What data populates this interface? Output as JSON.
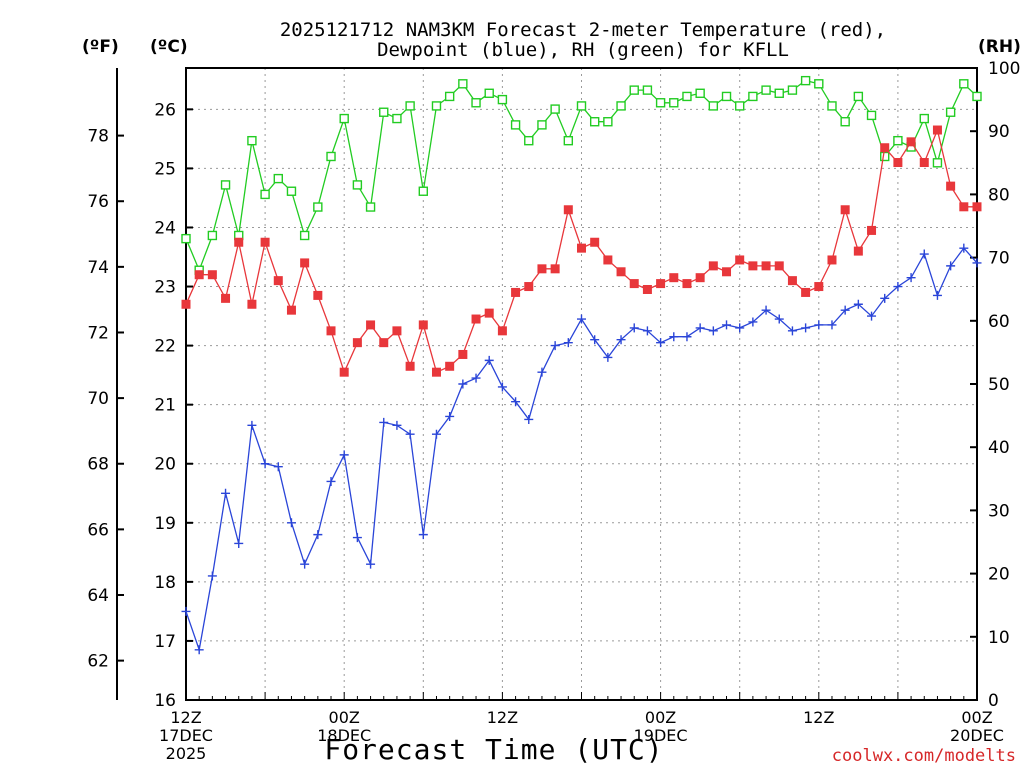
{
  "chart_data": {
    "type": "line",
    "title_lines": [
      "2025121712 NAM3KM Forecast 2-meter Temperature (red),",
      "Dewpoint (blue), RH (green) for KFLL"
    ],
    "xlabel": "Forecast Time (UTC)",
    "credit": "coolwx.com/modelts",
    "units": {
      "fahrenheit": "(ºF)",
      "celsius": "(ºC)",
      "rh": "(RH)"
    },
    "x_range": [
      0,
      60
    ],
    "x_ticks": [
      {
        "x": 0,
        "lines": [
          "12Z",
          "17DEC",
          "2025"
        ]
      },
      {
        "x": 12,
        "lines": [
          "00Z",
          "18DEC"
        ]
      },
      {
        "x": 24,
        "lines": [
          "12Z"
        ]
      },
      {
        "x": 36,
        "lines": [
          "00Z",
          "19DEC"
        ]
      },
      {
        "x": 48,
        "lines": [
          "12Z"
        ]
      },
      {
        "x": 60,
        "lines": [
          "00Z",
          "20DEC"
        ]
      }
    ],
    "celsius_axis": {
      "range": [
        16,
        26.7
      ],
      "ticks": [
        "16",
        "17",
        "18",
        "19",
        "20",
        "21",
        "22",
        "23",
        "24",
        "25",
        "26"
      ]
    },
    "fahrenheit_axis": {
      "range": [
        60.8,
        80.06
      ],
      "ticks": [
        "62",
        "64",
        "66",
        "68",
        "70",
        "72",
        "74",
        "76",
        "78"
      ]
    },
    "rh_axis": {
      "range": [
        0,
        100
      ],
      "ticks": [
        "0",
        "10",
        "20",
        "30",
        "40",
        "50",
        "60",
        "70",
        "80",
        "90",
        "100"
      ]
    },
    "colors": {
      "temperature": "#e8373b",
      "dewpoint": "#2a45d8",
      "rh": "#22cc22",
      "frame": "#000000",
      "credit": "#d62728"
    },
    "series": [
      {
        "name": "Temperature",
        "units": "C",
        "marker": "filled-square",
        "x": [
          0,
          1,
          2,
          3,
          4,
          5,
          6,
          7,
          8,
          9,
          10,
          11,
          12,
          13,
          14,
          15,
          16,
          17,
          18,
          19,
          20,
          21,
          22,
          23,
          24,
          25,
          26,
          27,
          28,
          29,
          30,
          31,
          32,
          33,
          34,
          35,
          36,
          37,
          38,
          39,
          40,
          41,
          42,
          43,
          44,
          45,
          46,
          47,
          48,
          49,
          50,
          51,
          52,
          53,
          54,
          55,
          56,
          57,
          58,
          59,
          60
        ],
        "values": [
          22.7,
          23.2,
          23.2,
          22.8,
          23.75,
          22.7,
          23.75,
          23.1,
          22.6,
          23.4,
          22.85,
          22.25,
          21.55,
          22.05,
          22.35,
          22.05,
          22.25,
          21.65,
          22.35,
          21.55,
          21.65,
          21.85,
          22.45,
          22.55,
          22.25,
          22.9,
          23.0,
          23.3,
          23.3,
          24.3,
          23.65,
          23.75,
          23.45,
          23.25,
          23.05,
          22.95,
          23.05,
          23.15,
          23.05,
          23.15,
          23.35,
          23.25,
          23.45,
          23.35,
          23.35,
          23.35,
          23.1,
          22.9,
          23.0,
          23.45,
          24.3,
          23.6,
          23.95,
          25.35,
          25.1,
          25.45,
          25.1,
          25.65,
          24.7,
          24.35,
          24.35
        ]
      },
      {
        "name": "Dewpoint",
        "units": "C",
        "marker": "plus",
        "x": [
          0,
          1,
          2,
          3,
          4,
          5,
          6,
          7,
          8,
          9,
          10,
          11,
          12,
          13,
          14,
          15,
          16,
          17,
          18,
          19,
          20,
          21,
          22,
          23,
          24,
          25,
          26,
          27,
          28,
          29,
          30,
          31,
          32,
          33,
          34,
          35,
          36,
          37,
          38,
          39,
          40,
          41,
          42,
          43,
          44,
          45,
          46,
          47,
          48,
          49,
          50,
          51,
          52,
          53,
          54,
          55,
          56,
          57,
          58,
          59,
          60
        ],
        "values": [
          17.5,
          16.85,
          18.1,
          19.5,
          18.65,
          20.65,
          20.0,
          19.95,
          19.0,
          18.3,
          18.8,
          19.7,
          20.15,
          18.75,
          18.3,
          20.7,
          20.65,
          20.5,
          18.8,
          20.5,
          20.8,
          21.35,
          21.45,
          21.75,
          21.3,
          21.05,
          20.75,
          21.55,
          22.0,
          22.05,
          22.45,
          22.1,
          21.8,
          22.1,
          22.3,
          22.25,
          22.05,
          22.15,
          22.15,
          22.3,
          22.25,
          22.35,
          22.3,
          22.4,
          22.6,
          22.45,
          22.25,
          22.3,
          22.35,
          22.35,
          22.6,
          22.7,
          22.5,
          22.8,
          23.0,
          23.15,
          23.55,
          22.85,
          23.35,
          23.65,
          23.4
        ]
      },
      {
        "name": "RH",
        "units": "%",
        "marker": "open-square",
        "x": [
          0,
          1,
          2,
          3,
          4,
          5,
          6,
          7,
          8,
          9,
          10,
          11,
          12,
          13,
          14,
          15,
          16,
          17,
          18,
          19,
          20,
          21,
          22,
          23,
          24,
          25,
          26,
          27,
          28,
          29,
          30,
          31,
          32,
          33,
          34,
          35,
          36,
          37,
          38,
          39,
          40,
          41,
          42,
          43,
          44,
          45,
          46,
          47,
          48,
          49,
          50,
          51,
          52,
          53,
          54,
          55,
          56,
          57,
          58,
          59,
          60
        ],
        "values": [
          73.0,
          68.0,
          73.5,
          81.5,
          73.5,
          88.5,
          80.0,
          82.5,
          80.5,
          73.5,
          78.0,
          86.0,
          92.0,
          81.5,
          78.0,
          93.0,
          92.0,
          94.0,
          80.5,
          94.0,
          95.5,
          97.5,
          94.5,
          96.0,
          95.0,
          91.0,
          88.5,
          91.0,
          93.5,
          88.5,
          94.0,
          91.5,
          91.5,
          94.0,
          96.5,
          96.5,
          94.5,
          94.5,
          95.5,
          96.0,
          94.0,
          95.5,
          94.0,
          95.5,
          96.5,
          96.0,
          96.5,
          98.0,
          97.5,
          94.0,
          91.5,
          95.5,
          92.5,
          86.0,
          88.5,
          87.5,
          92.0,
          85.0,
          93.0,
          97.5,
          95.5
        ]
      }
    ]
  }
}
